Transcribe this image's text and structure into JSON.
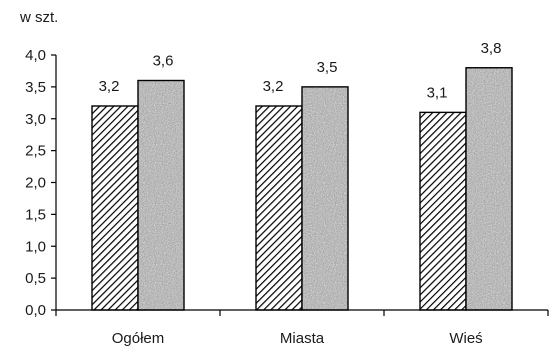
{
  "chart_data": {
    "type": "bar",
    "unit_label": "w szt.",
    "categories": [
      "Ogółem",
      "Miasta",
      "Wieś"
    ],
    "series": [
      {
        "pattern": "diagonal-hatch",
        "values": [
          3.2,
          3.2,
          3.1
        ],
        "labels": [
          "3,2",
          "3,2",
          "3,1"
        ]
      },
      {
        "pattern": "gray-speckle",
        "values": [
          3.6,
          3.5,
          3.8
        ],
        "labels": [
          "3,6",
          "3,5",
          "3,8"
        ]
      }
    ],
    "ylim": [
      0,
      4.0
    ],
    "yticks": [
      0,
      0.5,
      1.0,
      1.5,
      2.0,
      2.5,
      3.0,
      3.5,
      4.0
    ],
    "ytick_labels": [
      "0,0",
      "0,5",
      "1,0",
      "1,5",
      "2,0",
      "2,5",
      "3,0",
      "3,5",
      "4,0"
    ],
    "grid": false,
    "legend": "none",
    "colors": {
      "axis": "#000000",
      "bar_outline": "#000000",
      "speckle_base": "#a8a8a8"
    }
  }
}
